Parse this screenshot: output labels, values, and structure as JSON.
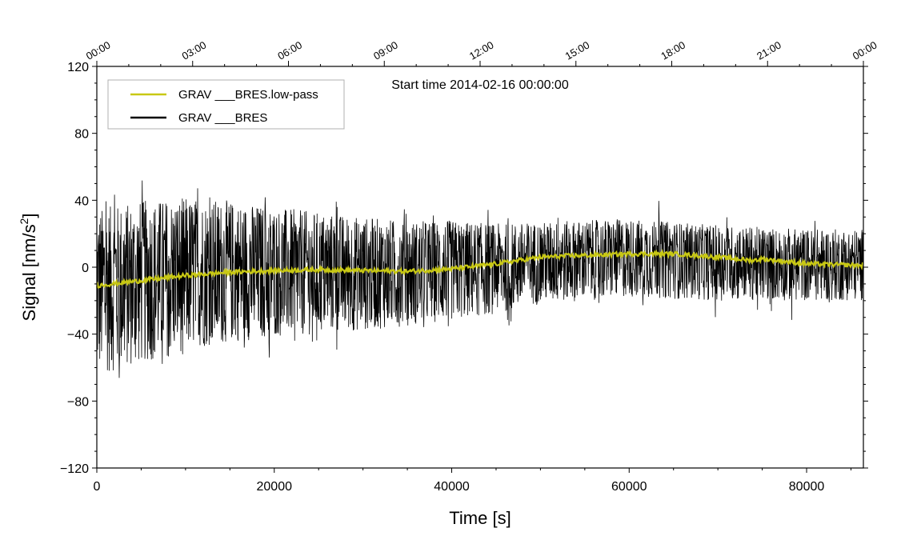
{
  "chart_data": {
    "type": "line",
    "title": "",
    "annotation": "Start time 2014-02-16 00:00:00",
    "xlabel": "Time [s]",
    "ylabel_main": "Signal [nm/s",
    "ylabel_sup": "2",
    "ylabel_close": "]",
    "xlim": [
      0,
      86400
    ],
    "ylim": [
      -120,
      120
    ],
    "x_ticks": [
      0,
      20000,
      40000,
      60000,
      80000
    ],
    "x_tick_labels": [
      "0",
      "20000",
      "40000",
      "60000",
      "80000"
    ],
    "x_minor_step": 5000,
    "y_ticks": [
      -120,
      -80,
      -40,
      0,
      40,
      80,
      120
    ],
    "y_tick_labels": [
      "−120",
      "−80",
      "−40",
      "0",
      "40",
      "80",
      "120"
    ],
    "y_minor_step": 10,
    "top_axis_ticks": [
      0,
      10800,
      21600,
      32400,
      43200,
      54000,
      64800,
      75600,
      86400
    ],
    "top_axis_labels": [
      "00:00",
      "03:00",
      "06:00",
      "09:00",
      "12:00",
      "15:00",
      "18:00",
      "21:00",
      "00:00"
    ],
    "top_minor_step": 3600,
    "legend_position": "top-left",
    "series": [
      {
        "name": "GRAV ___BRES.low-pass",
        "color": "#c8c814",
        "kind": "smoothed",
        "x": [
          0,
          5000,
          10000,
          15000,
          20000,
          25000,
          30000,
          35000,
          40000,
          45000,
          50000,
          54000,
          55000,
          60000,
          65000,
          70000,
          74000,
          75000,
          80000,
          86400
        ],
        "y": [
          -11,
          -8,
          -5,
          -3,
          -2,
          -1.5,
          -2,
          -2.5,
          -1,
          2,
          6,
          7,
          7,
          8,
          8,
          6,
          4,
          5,
          2,
          1
        ]
      },
      {
        "name": "GRAV ___BRES",
        "color": "#000000",
        "kind": "raw",
        "x": [
          0,
          5000,
          10000,
          15000,
          20000,
          25000,
          30000,
          35000,
          40000,
          45000,
          50000,
          55000,
          60000,
          65000,
          70000,
          75000,
          80000,
          86400
        ],
        "mean": [
          -11,
          -8,
          -5,
          -3,
          -2,
          -1.5,
          -2,
          -2.5,
          -1,
          2,
          6,
          7,
          8,
          8,
          6,
          4,
          2,
          1
        ],
        "upper_envelope": [
          35,
          40,
          42,
          40,
          36,
          33,
          30,
          28,
          28,
          26,
          27,
          28,
          29,
          27,
          25,
          24,
          23,
          23
        ],
        "lower_envelope": [
          -65,
          -58,
          -50,
          -45,
          -42,
          -40,
          -38,
          -35,
          -32,
          -28,
          -22,
          -20,
          -18,
          -19,
          -20,
          -20,
          -20,
          -20
        ],
        "peak_max": 53,
        "peak_min": -77
      }
    ]
  }
}
